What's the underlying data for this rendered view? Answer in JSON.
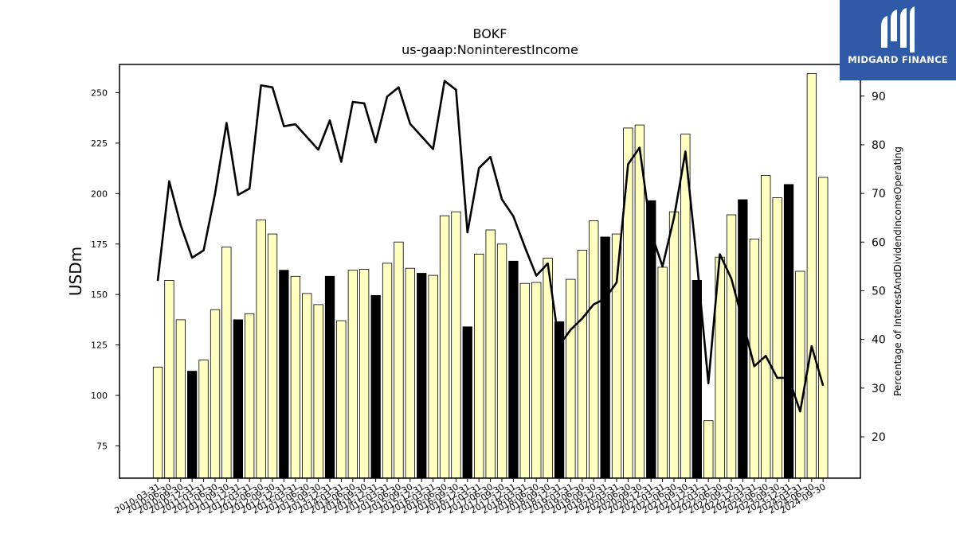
{
  "brand": {
    "name": "MIDGARD FINANCE",
    "background": "#2f5aa8",
    "icon": "midgard-m-logo-icon"
  },
  "chart_data": {
    "type": "bar",
    "title": "BOKF",
    "subtitle": "us-gaap:NoninterestIncome",
    "ylabel": "USDm",
    "y2label": "Percentage of InterestAndDividendIncomeOperating",
    "ylim": [
      59,
      264
    ],
    "y2lim": [
      11.5,
      96.5
    ],
    "yticks": [
      75,
      100,
      125,
      150,
      175,
      200,
      225,
      250
    ],
    "y2ticks": [
      20,
      30,
      40,
      50,
      60,
      70,
      80,
      90
    ],
    "colors": {
      "q4_bar": "#000000",
      "other_bar": "#ffffc0",
      "bar_edge": "#000000",
      "line": "#000000"
    },
    "categories": [
      "2010-03-31",
      "2010-06-30",
      "2010-09-30",
      "2010-12-31",
      "2011-03-31",
      "2011-06-30",
      "2011-09-30",
      "2011-12-31",
      "2012-03-31",
      "2012-06-30",
      "2012-09-30",
      "2012-12-31",
      "2013-03-31",
      "2013-06-30",
      "2013-09-30",
      "2013-12-31",
      "2014-03-31",
      "2014-06-30",
      "2014-09-30",
      "2014-12-31",
      "2015-03-31",
      "2015-06-30",
      "2015-09-30",
      "2015-12-31",
      "2016-03-31",
      "2016-06-30",
      "2016-09-30",
      "2016-12-31",
      "2017-03-31",
      "2017-06-30",
      "2017-09-30",
      "2017-12-31",
      "2018-03-31",
      "2018-06-30",
      "2018-09-30",
      "2018-12-31",
      "2019-03-31",
      "2019-06-30",
      "2019-09-30",
      "2019-12-31",
      "2020-03-31",
      "2020-06-30",
      "2020-09-30",
      "2020-12-31",
      "2021-03-31",
      "2021-06-30",
      "2021-09-30",
      "2021-12-31",
      "2022-03-31",
      "2022-06-30",
      "2022-09-30",
      "2022-12-31",
      "2023-03-31",
      "2023-06-30",
      "2023-09-30",
      "2023-12-31",
      "2024-03-31",
      "2024-06-30",
      "2024-09-30"
    ],
    "series": [
      {
        "type": "bar",
        "values": [
          114,
          157,
          137.5,
          112,
          117.5,
          142.5,
          173.5,
          137.5,
          140.5,
          187,
          180,
          162,
          159,
          150.5,
          145,
          159,
          137,
          162,
          162.5,
          149.5,
          165.5,
          176,
          163,
          160.5,
          159.5,
          189,
          191,
          134,
          170,
          182,
          175,
          166.5,
          155.5,
          156,
          168,
          136.5,
          157.5,
          172,
          186.5,
          178.5,
          180,
          232.5,
          234,
          196.5,
          163.5,
          191,
          229.5,
          157,
          87.5,
          168.5,
          189.5,
          197,
          177.5,
          209,
          198,
          204.5,
          161.5,
          259.5,
          208
        ]
      },
      {
        "type": "line",
        "axis": "right",
        "values": [
          52,
          72.5,
          63.5,
          56.8,
          58.3,
          70,
          84.5,
          69.7,
          71,
          92.2,
          91.8,
          83.8,
          84.2,
          81.6,
          79,
          85,
          76.5,
          88.8,
          88.5,
          80.5,
          89.9,
          91.8,
          84.3,
          81.7,
          79.1,
          93.1,
          91.3,
          62,
          75.2,
          77.5,
          68.8,
          65.3,
          59,
          53.1,
          55.6,
          38.8,
          42,
          44.3,
          47.2,
          48.4,
          51.7,
          76,
          79.4,
          62,
          55,
          65,
          78.6,
          56,
          31,
          57.5,
          52.5,
          43.7,
          34.5,
          36.6,
          32.1,
          32.1,
          25.2,
          38.6,
          30.5
        ]
      }
    ]
  }
}
